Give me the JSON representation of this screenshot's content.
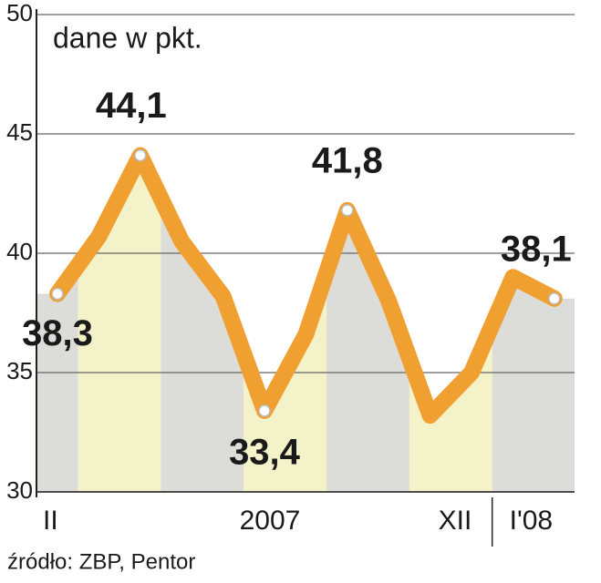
{
  "chart_data": {
    "type": "line",
    "title": "dane w pkt.",
    "source": "źródło: ZBP, Pentor",
    "categories": [
      "II",
      null,
      null,
      null,
      null,
      "2007",
      null,
      null,
      null,
      null,
      "XII",
      "I'08",
      null
    ],
    "values": [
      38.3,
      40.7,
      44.1,
      40.5,
      38.2,
      33.4,
      36.6,
      41.8,
      38.0,
      33.2,
      35.0,
      39.0,
      38.1
    ],
    "value_labels": [
      "38,3",
      null,
      "44,1",
      null,
      null,
      "33,4",
      null,
      "41,8",
      null,
      null,
      null,
      null,
      "38,1"
    ],
    "color": "#f0a030",
    "ylim": [
      30,
      50
    ],
    "yticks": [
      30,
      35,
      40,
      45,
      50
    ],
    "grid": true
  }
}
